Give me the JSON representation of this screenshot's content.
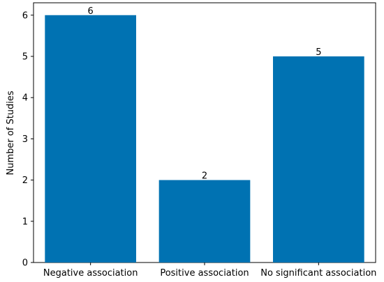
{
  "chart_data": {
    "type": "bar",
    "categories": [
      "Negative association",
      "Positive association",
      "No significant association"
    ],
    "values": [
      6,
      2,
      5
    ],
    "data_labels": [
      "6",
      "2",
      "5"
    ],
    "title": "",
    "xlabel": "",
    "ylabel": "Number of Studies",
    "ylim": [
      0,
      6.3
    ],
    "yticks": [
      0,
      1,
      2,
      3,
      4,
      5,
      6
    ],
    "ytick_labels": [
      "0",
      "1",
      "2",
      "3",
      "4",
      "5",
      "6"
    ],
    "grid": false,
    "legend": "none",
    "bar_color": "#0072B2"
  }
}
